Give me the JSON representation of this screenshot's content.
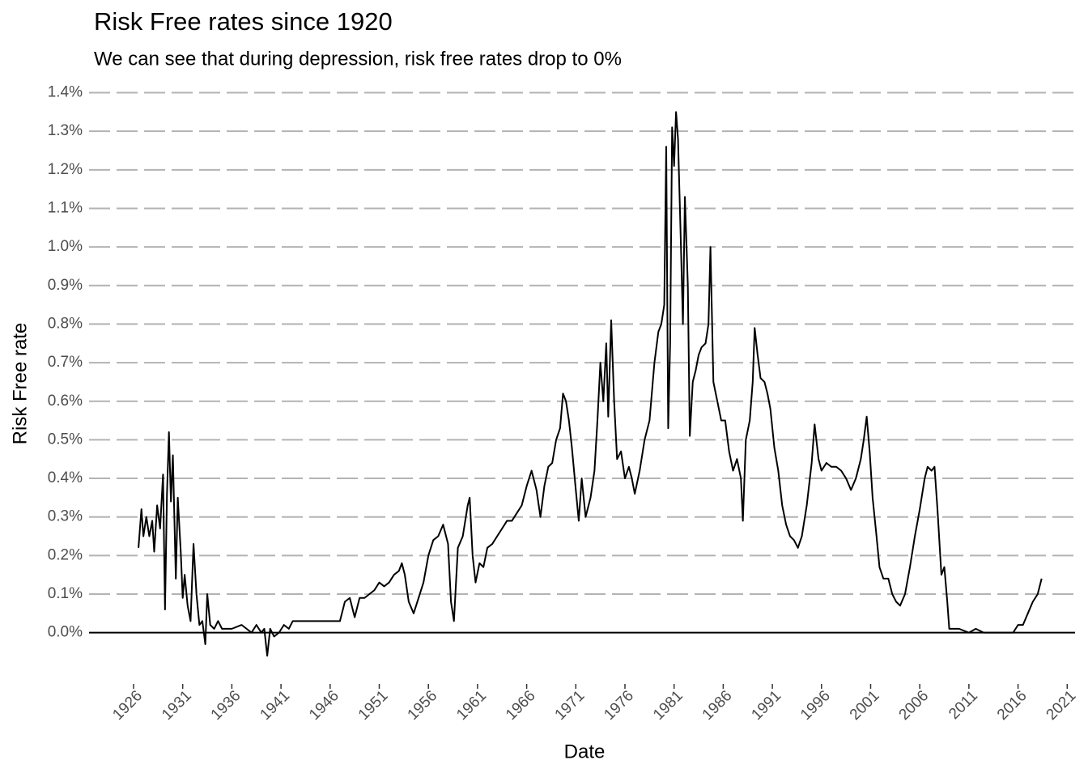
{
  "chart_data": {
    "type": "line",
    "title": "Risk Free rates since 1920",
    "subtitle": "We can see that during depression, risk free rates drop to 0%",
    "x_label": "Date",
    "y_label": "Risk Free rate",
    "color": "#000000",
    "grid": true,
    "zero_line": true,
    "xlim": [
      1921.47,
      2021.8
    ],
    "ylim": [
      -0.07,
      1.42
    ],
    "xticks": [
      1926,
      1931,
      1936,
      1941,
      1946,
      1951,
      1956,
      1961,
      1966,
      1971,
      1976,
      1981,
      1986,
      1991,
      1996,
      2001,
      2006,
      2011,
      2016,
      2021
    ],
    "yticks": [
      {
        "value": 0,
        "label": "0.0%"
      },
      {
        "value": 0.1,
        "label": "0.1%"
      },
      {
        "value": 0.2,
        "label": "0.2%"
      },
      {
        "value": 0.3,
        "label": "0.3%"
      },
      {
        "value": 0.4,
        "label": "0.4%"
      },
      {
        "value": 0.5,
        "label": "0.5%"
      },
      {
        "value": 0.6,
        "label": "0.6%"
      },
      {
        "value": 0.7,
        "label": "0.7%"
      },
      {
        "value": 0.8,
        "label": "0.8%"
      },
      {
        "value": 0.9,
        "label": "0.9%"
      },
      {
        "value": 1.0,
        "label": "1.0%"
      },
      {
        "value": 1.1,
        "label": "1.1%"
      },
      {
        "value": 1.2,
        "label": "1.2%"
      },
      {
        "value": 1.3,
        "label": "1.3%"
      },
      {
        "value": 1.4,
        "label": "1.4%"
      }
    ],
    "x": [
      1926.5,
      1926.8,
      1927.0,
      1927.3,
      1927.6,
      1927.9,
      1928.1,
      1928.4,
      1928.7,
      1929.0,
      1929.2,
      1929.4,
      1929.6,
      1929.8,
      1930.0,
      1930.3,
      1930.5,
      1930.8,
      1931.0,
      1931.2,
      1931.5,
      1931.8,
      1932.1,
      1932.4,
      1932.7,
      1933.0,
      1933.3,
      1933.5,
      1933.8,
      1934.2,
      1934.6,
      1935.0,
      1936.0,
      1937.0,
      1937.5,
      1938.0,
      1938.5,
      1939.0,
      1939.3,
      1939.6,
      1939.9,
      1940.3,
      1940.8,
      1941.3,
      1941.8,
      1942.2,
      1945.0,
      1946.5,
      1947.0,
      1947.5,
      1948.0,
      1948.5,
      1949.0,
      1949.5,
      1950.0,
      1950.5,
      1951.0,
      1951.5,
      1952.0,
      1952.5,
      1953.0,
      1953.3,
      1953.6,
      1954.0,
      1954.5,
      1955.0,
      1955.5,
      1956.0,
      1956.5,
      1957.0,
      1957.5,
      1958.0,
      1958.3,
      1958.6,
      1959.0,
      1959.5,
      1960.0,
      1960.2,
      1960.5,
      1960.8,
      1961.2,
      1961.6,
      1962.0,
      1962.5,
      1963.0,
      1963.5,
      1964.0,
      1964.5,
      1965.0,
      1965.5,
      1966.0,
      1966.5,
      1967.0,
      1967.4,
      1967.8,
      1968.2,
      1968.6,
      1969.0,
      1969.4,
      1969.7,
      1970.0,
      1970.3,
      1970.6,
      1971.0,
      1971.3,
      1971.6,
      1972.0,
      1972.5,
      1972.9,
      1973.2,
      1973.5,
      1973.8,
      1974.1,
      1974.3,
      1974.6,
      1974.9,
      1975.2,
      1975.6,
      1976.0,
      1976.4,
      1976.7,
      1977.0,
      1977.5,
      1978.0,
      1978.5,
      1979.0,
      1979.4,
      1979.7,
      1980.0,
      1980.2,
      1980.4,
      1980.6,
      1980.8,
      1981.0,
      1981.2,
      1981.4,
      1981.7,
      1981.9,
      1982.1,
      1982.4,
      1982.6,
      1982.9,
      1983.2,
      1983.5,
      1983.8,
      1984.2,
      1984.5,
      1984.7,
      1985.0,
      1985.4,
      1985.8,
      1986.2,
      1986.6,
      1987.0,
      1987.4,
      1987.8,
      1988.0,
      1988.3,
      1988.7,
      1989.0,
      1989.2,
      1989.5,
      1989.8,
      1990.2,
      1990.5,
      1990.8,
      1991.2,
      1991.6,
      1992.0,
      1992.4,
      1992.8,
      1993.2,
      1993.6,
      1994.0,
      1994.5,
      1995.0,
      1995.3,
      1995.7,
      1996.0,
      1996.5,
      1997.0,
      1997.5,
      1998.0,
      1998.5,
      1999.0,
      1999.5,
      2000.0,
      2000.3,
      2000.6,
      2000.9,
      2001.2,
      2001.6,
      2001.9,
      2002.3,
      2002.8,
      2003.2,
      2003.6,
      2004.0,
      2004.5,
      2005.0,
      2005.5,
      2006.0,
      2006.5,
      2006.8,
      2007.2,
      2007.5,
      2007.8,
      2008.2,
      2008.5,
      2008.8,
      2009.0,
      2009.5,
      2010.0,
      2011.0,
      2011.7,
      2012.5,
      2014.0,
      2015.5,
      2016.0,
      2016.5,
      2017.0,
      2017.5,
      2018.0,
      2018.4
    ],
    "values": [
      0.22,
      0.32,
      0.25,
      0.3,
      0.25,
      0.29,
      0.21,
      0.33,
      0.27,
      0.41,
      0.06,
      0.36,
      0.52,
      0.34,
      0.46,
      0.14,
      0.35,
      0.21,
      0.09,
      0.15,
      0.07,
      0.03,
      0.23,
      0.1,
      0.02,
      0.03,
      -0.03,
      0.1,
      0.02,
      0.01,
      0.03,
      0.01,
      0.01,
      0.02,
      0.01,
      0.0,
      0.02,
      0.0,
      0.01,
      -0.06,
      0.01,
      -0.01,
      0.0,
      0.02,
      0.01,
      0.03,
      0.03,
      0.03,
      0.03,
      0.08,
      0.09,
      0.04,
      0.09,
      0.09,
      0.1,
      0.11,
      0.13,
      0.12,
      0.13,
      0.15,
      0.16,
      0.18,
      0.15,
      0.08,
      0.05,
      0.09,
      0.13,
      0.2,
      0.24,
      0.25,
      0.28,
      0.23,
      0.08,
      0.03,
      0.22,
      0.25,
      0.33,
      0.35,
      0.2,
      0.13,
      0.18,
      0.17,
      0.22,
      0.23,
      0.25,
      0.27,
      0.29,
      0.29,
      0.31,
      0.33,
      0.38,
      0.42,
      0.37,
      0.3,
      0.38,
      0.43,
      0.44,
      0.5,
      0.53,
      0.62,
      0.6,
      0.55,
      0.48,
      0.37,
      0.29,
      0.4,
      0.3,
      0.35,
      0.42,
      0.55,
      0.7,
      0.6,
      0.75,
      0.56,
      0.81,
      0.6,
      0.45,
      0.47,
      0.4,
      0.43,
      0.4,
      0.36,
      0.42,
      0.5,
      0.55,
      0.7,
      0.78,
      0.8,
      0.85,
      1.26,
      0.53,
      0.75,
      1.31,
      1.21,
      1.35,
      1.28,
      1.0,
      0.8,
      1.13,
      0.9,
      0.51,
      0.65,
      0.68,
      0.72,
      0.74,
      0.75,
      0.8,
      1.0,
      0.65,
      0.6,
      0.55,
      0.55,
      0.47,
      0.42,
      0.45,
      0.4,
      0.29,
      0.5,
      0.55,
      0.65,
      0.79,
      0.72,
      0.66,
      0.65,
      0.62,
      0.58,
      0.48,
      0.42,
      0.33,
      0.28,
      0.25,
      0.24,
      0.22,
      0.25,
      0.33,
      0.44,
      0.54,
      0.45,
      0.42,
      0.44,
      0.43,
      0.43,
      0.42,
      0.4,
      0.37,
      0.4,
      0.45,
      0.5,
      0.56,
      0.47,
      0.35,
      0.25,
      0.17,
      0.14,
      0.14,
      0.1,
      0.08,
      0.07,
      0.1,
      0.17,
      0.25,
      0.32,
      0.4,
      0.43,
      0.42,
      0.43,
      0.32,
      0.15,
      0.17,
      0.08,
      0.01,
      0.01,
      0.01,
      0.0,
      0.01,
      0.0,
      0.0,
      0.0,
      0.02,
      0.02,
      0.05,
      0.08,
      0.1,
      0.14
    ]
  }
}
